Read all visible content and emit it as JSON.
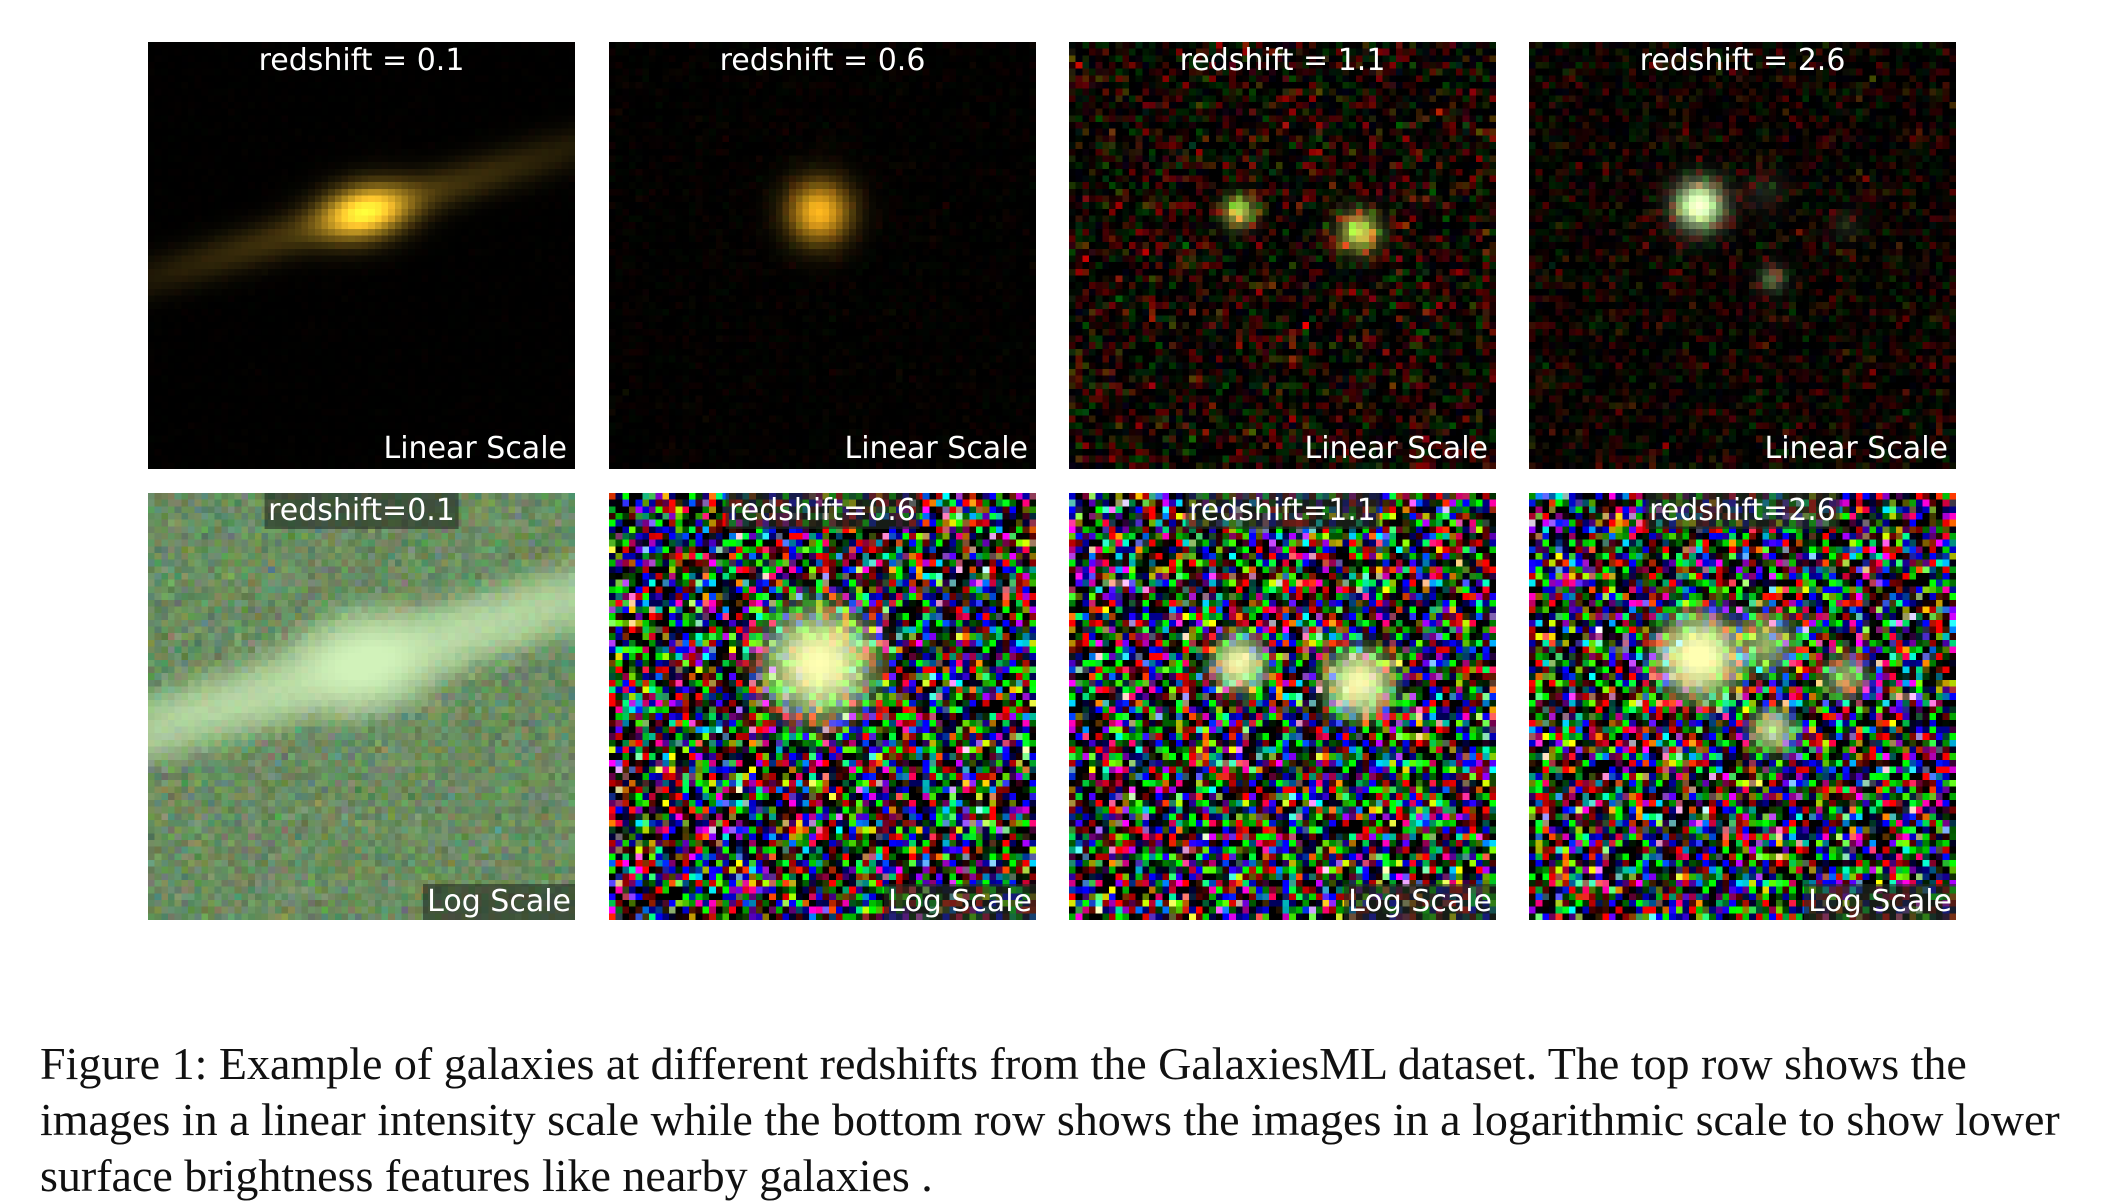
{
  "figure": {
    "panels": [
      {
        "row": "linear",
        "title": "redshift = 0.1",
        "scale_label": "Linear Scale"
      },
      {
        "row": "linear",
        "title": "redshift = 0.6",
        "scale_label": "Linear Scale"
      },
      {
        "row": "linear",
        "title": "redshift = 1.1",
        "scale_label": "Linear Scale"
      },
      {
        "row": "linear",
        "title": "redshift = 2.6",
        "scale_label": "Linear Scale"
      },
      {
        "row": "log",
        "title": "redshift=0.1",
        "scale_label": "Log Scale"
      },
      {
        "row": "log",
        "title": "redshift=0.6",
        "scale_label": "Log Scale"
      },
      {
        "row": "log",
        "title": "redshift=1.1",
        "scale_label": "Log Scale"
      },
      {
        "row": "log",
        "title": "redshift=2.6",
        "scale_label": "Log Scale"
      }
    ],
    "caption": "Figure 1: Example of galaxies at different redshifts from the GalaxiesML dataset. The top row shows the images in a linear intensity scale while the bottom row shows the images in a logarithmic scale to show lower surface brightness features like nearby galaxies ."
  }
}
